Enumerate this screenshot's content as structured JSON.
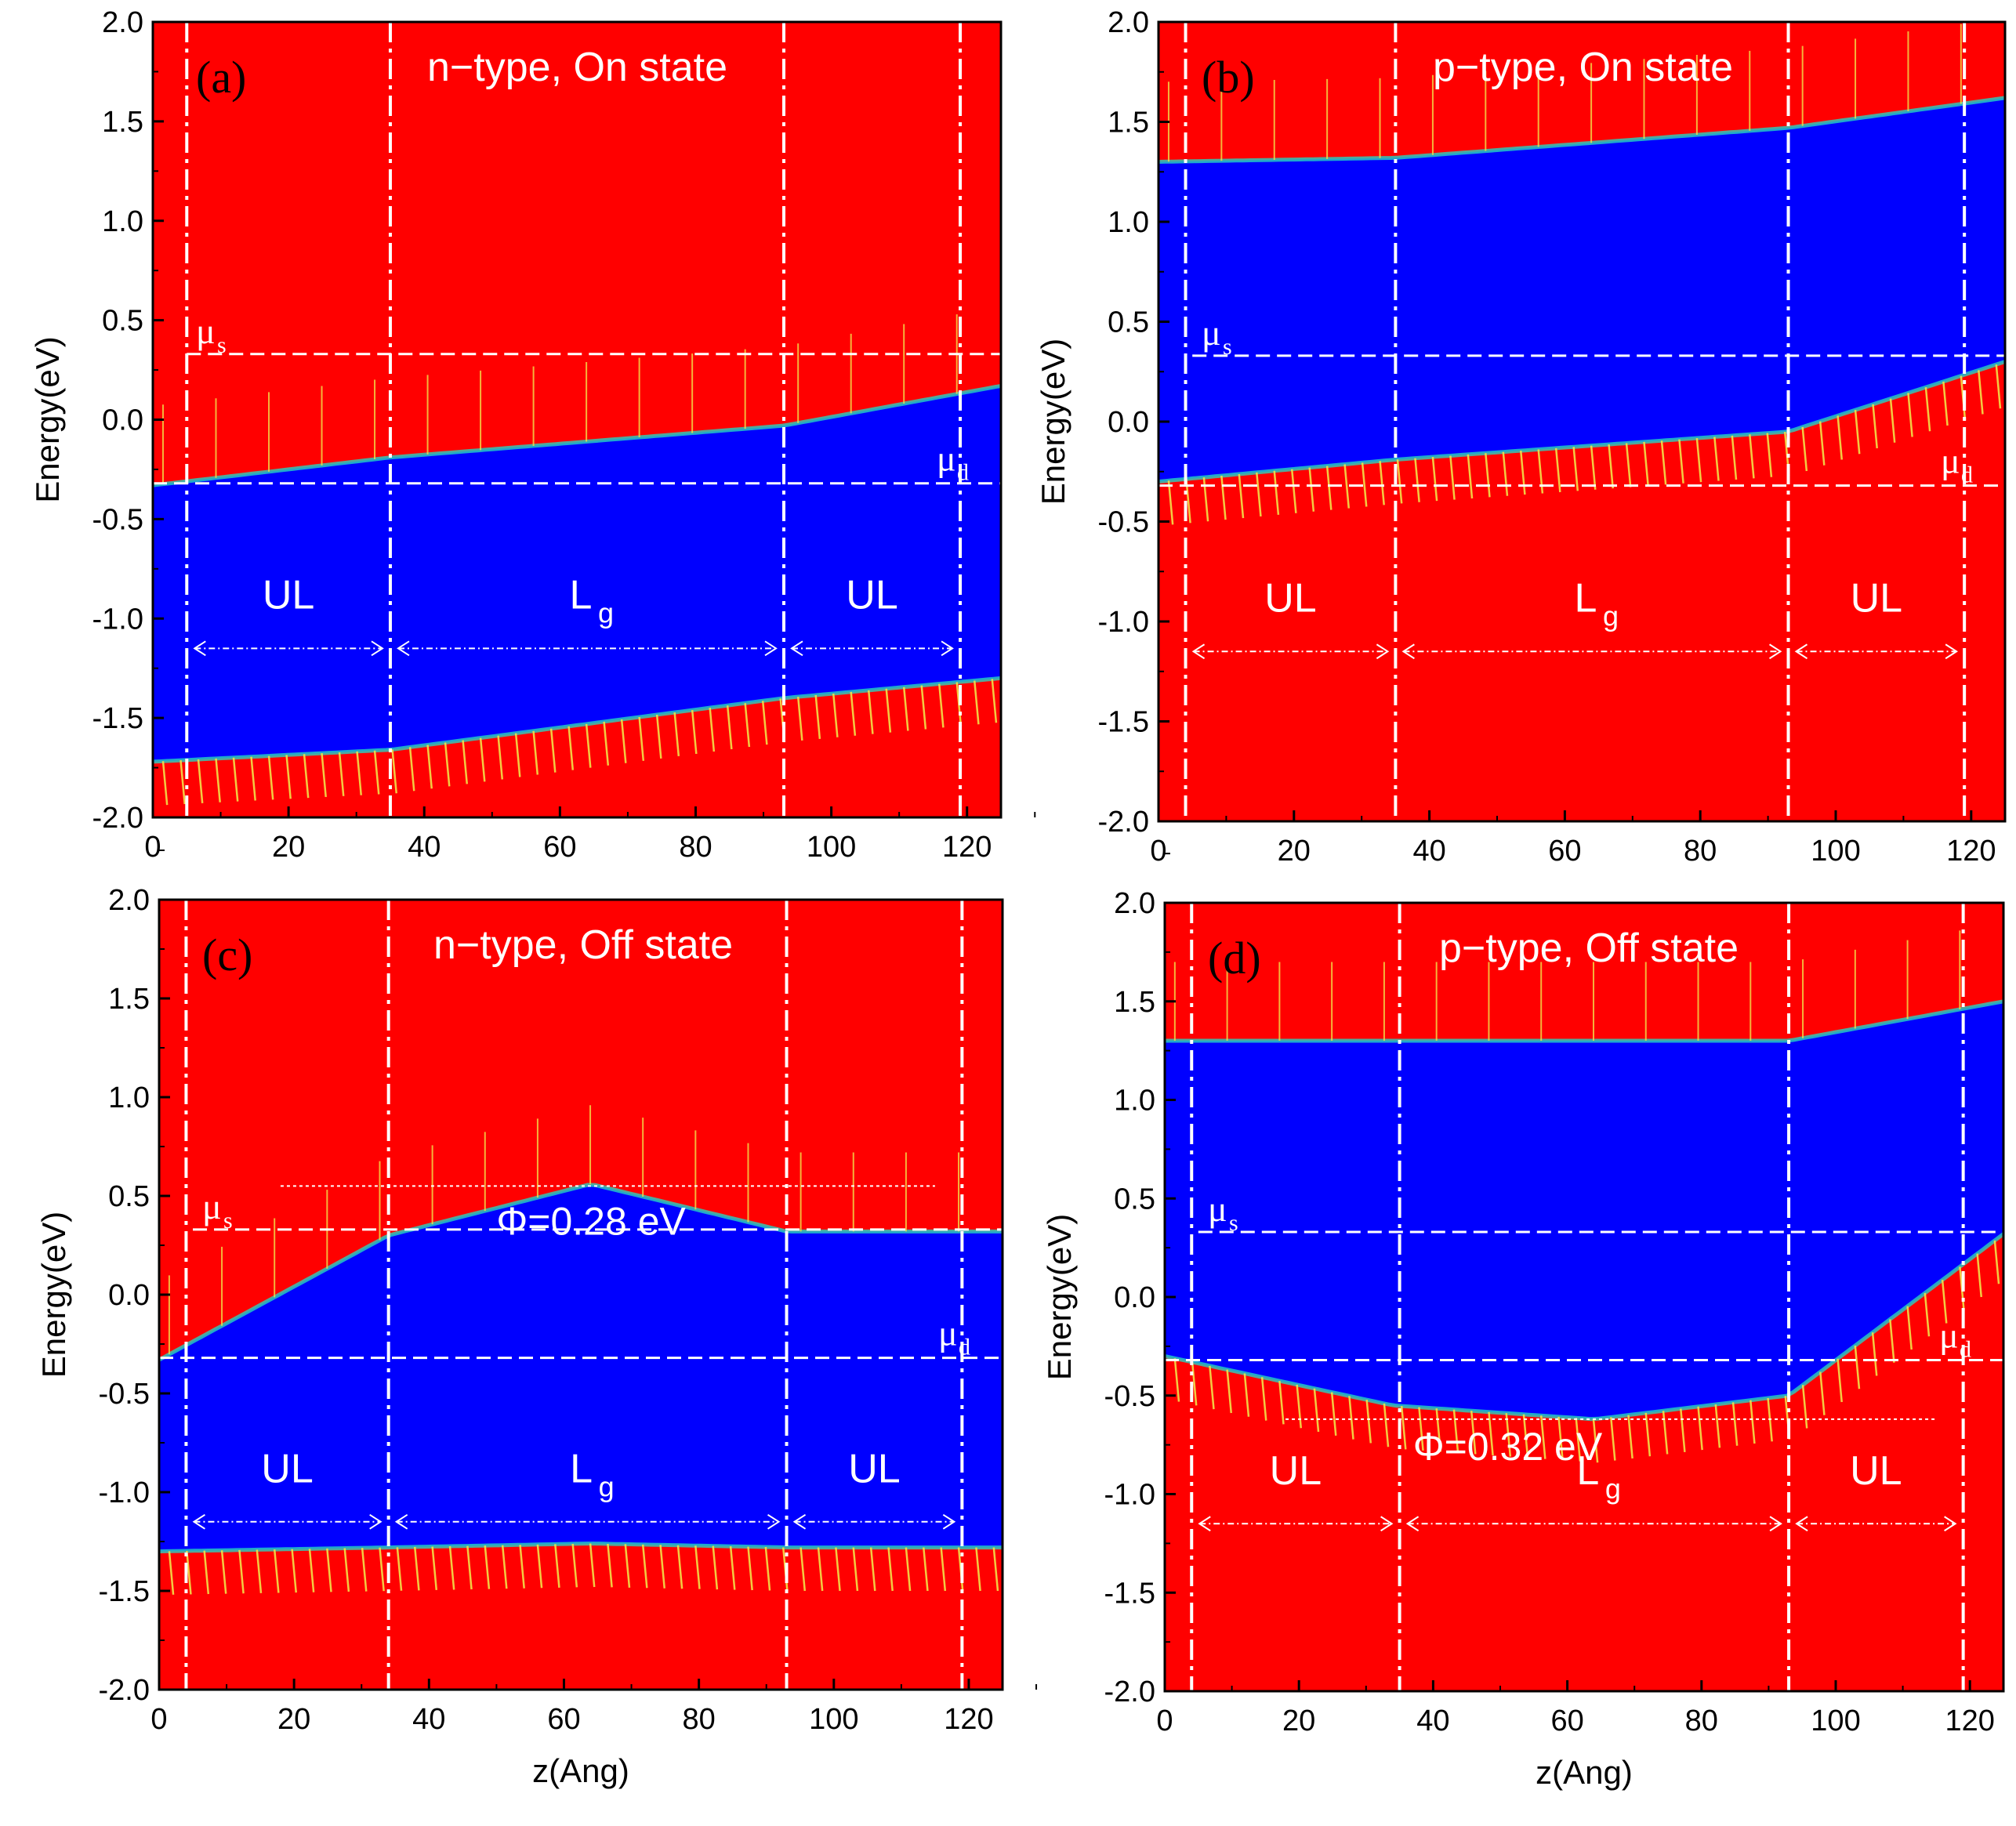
{
  "figure": {
    "ylabel": "Energy(eV)",
    "xlabel": "z(Ang)",
    "region_labels": {
      "ul": "UL",
      "lg_main": "L",
      "lg_sub": "g"
    },
    "colors": {
      "band": "#ff0000",
      "gap": "#0000ff",
      "spike": "#f2e24a",
      "spike_edge": "#27d3c0",
      "guide": "#ffffff",
      "axis": "#000000"
    }
  },
  "chart_data": [
    {
      "id": "a",
      "type": "heatmap",
      "panel_label": "(a)",
      "title": "n−type, On state",
      "xlabel": "z(Ang)",
      "ylabel": "Energy(eV)",
      "xlim": [
        0,
        125
      ],
      "ylim": [
        -2.0,
        2.0
      ],
      "xticks": [
        "0",
        "20",
        "40",
        "60",
        "80",
        "100",
        "120"
      ],
      "yticks": [
        "-2.0",
        "-1.5",
        "-1.0",
        "-0.5",
        "0.0",
        "0.5",
        "1.0",
        "1.5",
        "2.0"
      ],
      "regions": [
        5,
        35,
        93,
        119
      ],
      "mu_s": {
        "label": "μ",
        "sub": "s",
        "value": 0.33
      },
      "mu_d": {
        "label": "μ",
        "sub": "d",
        "value": -0.32
      },
      "gap_edges": {
        "x": [
          0,
          35,
          93,
          125
        ],
        "cond": [
          -0.33,
          -0.19,
          -0.03,
          0.17
        ],
        "val": [
          -1.72,
          -1.66,
          -1.4,
          -1.3
        ]
      },
      "barrier": null
    },
    {
      "id": "b",
      "type": "heatmap",
      "panel_label": "(b)",
      "title": "p−type, On state",
      "xlabel": "z(Ang)",
      "ylabel": "Energy(eV)",
      "xlim": [
        0,
        125
      ],
      "ylim": [
        -2.0,
        2.0
      ],
      "xticks": [
        "0",
        "20",
        "40",
        "60",
        "80",
        "100",
        "120"
      ],
      "yticks": [
        "-2.0",
        "-1.5",
        "-1.0",
        "-0.5",
        "0.0",
        "0.5",
        "1.0",
        "1.5",
        "2.0"
      ],
      "regions": [
        4,
        35,
        93,
        119
      ],
      "mu_s": {
        "label": "μ",
        "sub": "s",
        "value": 0.33
      },
      "mu_d": {
        "label": "μ",
        "sub": "d",
        "value": -0.32
      },
      "gap_edges": {
        "x": [
          0,
          35,
          93,
          125
        ],
        "cond": [
          1.3,
          1.32,
          1.47,
          1.62
        ],
        "val": [
          -0.3,
          -0.19,
          -0.05,
          0.3
        ]
      },
      "barrier": null
    },
    {
      "id": "c",
      "type": "heatmap",
      "panel_label": "(c)",
      "title": "n−type, Off state",
      "xlabel": "z(Ang)",
      "ylabel": "Energy(eV)",
      "xlim": [
        0,
        125
      ],
      "ylim": [
        -2.0,
        2.0
      ],
      "xticks": [
        "0",
        "20",
        "40",
        "60",
        "80",
        "100",
        "120"
      ],
      "yticks": [
        "-2.0",
        "-1.5",
        "-1.0",
        "-0.5",
        "0.0",
        "0.5",
        "1.0",
        "1.5",
        "2.0"
      ],
      "regions": [
        4,
        34,
        93,
        119
      ],
      "mu_s": {
        "label": "μ",
        "sub": "s",
        "value": 0.33
      },
      "mu_d": {
        "label": "μ",
        "sub": "d",
        "value": -0.32
      },
      "gap_edges": {
        "x": [
          0,
          34,
          64,
          93,
          125
        ],
        "cond": [
          -0.33,
          0.3,
          0.56,
          0.32,
          0.32
        ],
        "val": [
          -1.3,
          -1.28,
          -1.26,
          -1.28,
          -1.28
        ]
      },
      "barrier": {
        "label": "Φ=0.28 eV",
        "value": 0.55
      }
    },
    {
      "id": "d",
      "type": "heatmap",
      "panel_label": "(d)",
      "title": "p−type, Off state",
      "xlabel": "z(Ang)",
      "ylabel": "Energy(eV)",
      "xlim": [
        0,
        125
      ],
      "ylim": [
        -2.0,
        2.0
      ],
      "xticks": [
        "0",
        "20",
        "40",
        "60",
        "80",
        "100",
        "120"
      ],
      "yticks": [
        "-2.0",
        "-1.5",
        "-1.0",
        "-0.5",
        "0.0",
        "0.5",
        "1.0",
        "1.5",
        "2.0"
      ],
      "regions": [
        4,
        35,
        93,
        119
      ],
      "mu_s": {
        "label": "μ",
        "sub": "s",
        "value": 0.33
      },
      "mu_d": {
        "label": "μ",
        "sub": "d",
        "value": -0.32
      },
      "gap_edges": {
        "x": [
          0,
          34,
          64,
          93,
          125
        ],
        "cond": [
          1.3,
          1.3,
          1.3,
          1.3,
          1.5
        ],
        "val": [
          -0.3,
          -0.55,
          -0.62,
          -0.5,
          0.32
        ]
      },
      "barrier": {
        "label": "Φ=0.32 eV",
        "value": -0.62
      }
    }
  ]
}
